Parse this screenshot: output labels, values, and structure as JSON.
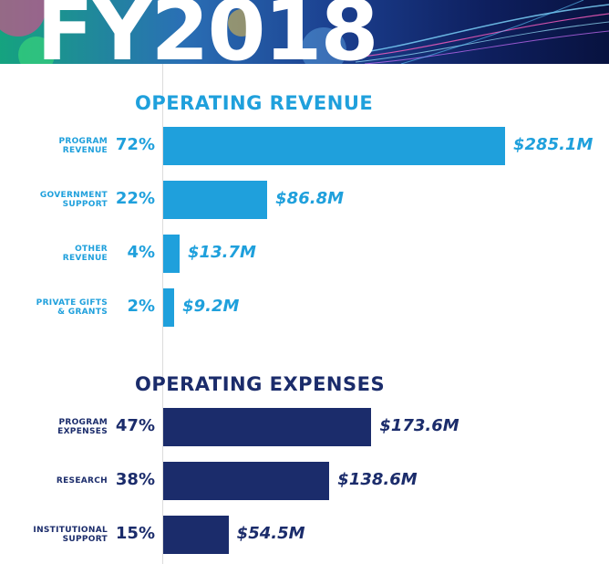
{
  "banner": {
    "title": "FY2018"
  },
  "colors": {
    "revenue": "#1fa0dc",
    "expenses": "#1b2c6b"
  },
  "chart_data": [
    {
      "type": "bar",
      "orientation": "horizontal",
      "title": "OPERATING REVENUE",
      "categories": [
        [
          "PROGRAM",
          "REVENUE"
        ],
        [
          "GOVERNMENT",
          "SUPPORT"
        ],
        [
          "OTHER",
          "REVENUE"
        ],
        [
          "PRIVATE GIFTS",
          "& GRANTS"
        ]
      ],
      "percent_labels": [
        "72%",
        "22%",
        "4%",
        "2%"
      ],
      "values": [
        285.1,
        86.8,
        13.7,
        9.2
      ],
      "value_labels": [
        "$285.1M",
        "$86.8M",
        "$13.7M",
        "$9.2M"
      ],
      "unit": "$M",
      "xlim": [
        0,
        285.1
      ]
    },
    {
      "type": "bar",
      "orientation": "horizontal",
      "title": "OPERATING EXPENSES",
      "categories": [
        [
          "PROGRAM",
          "EXPENSES"
        ],
        [
          "RESEARCH"
        ],
        [
          "INSTITUTIONAL",
          "SUPPORT"
        ]
      ],
      "percent_labels": [
        "47%",
        "38%",
        "15%"
      ],
      "values": [
        173.6,
        138.6,
        54.5
      ],
      "value_labels": [
        "$173.6M",
        "$138.6M",
        "$54.5M"
      ],
      "unit": "$M",
      "xlim": [
        0,
        285.1
      ]
    }
  ]
}
